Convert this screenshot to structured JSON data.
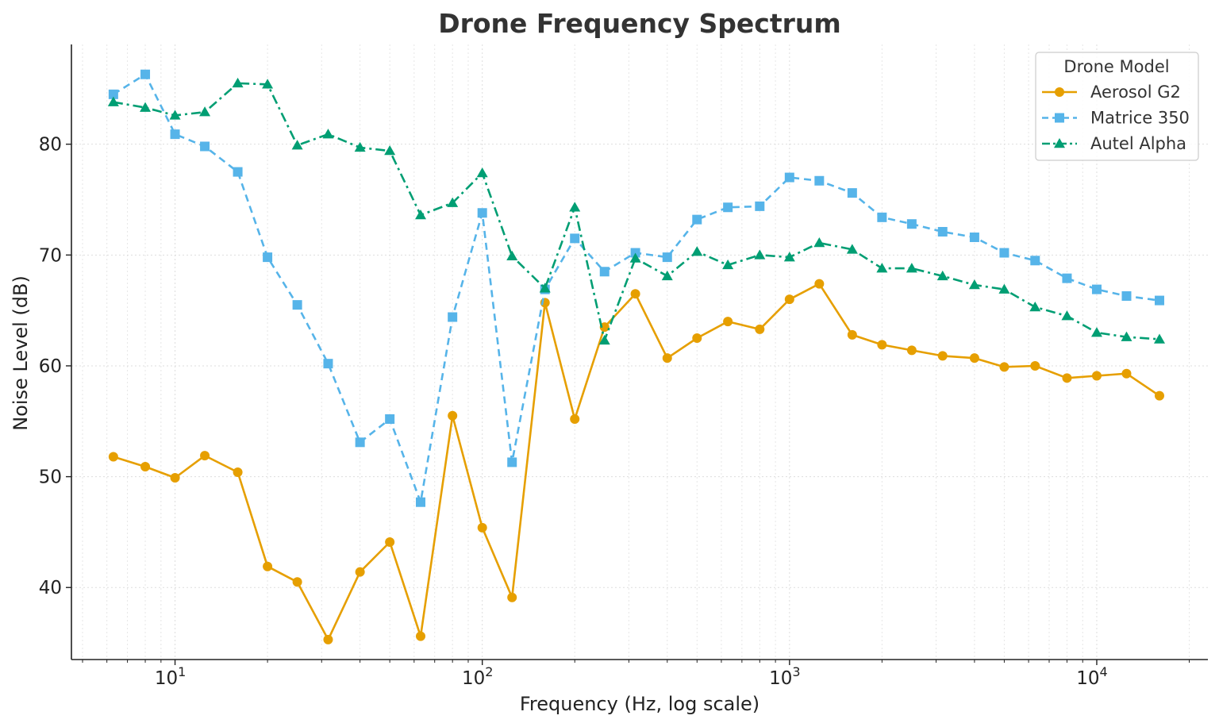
{
  "chart_data": {
    "type": "line",
    "title": "Drone Frequency Spectrum",
    "xlabel": "Frequency (Hz, log scale)",
    "ylabel": "Noise Level (dB)",
    "xscale": "log",
    "xlim": [
      4.6,
      23000
    ],
    "ylim": [
      33.5,
      89
    ],
    "xticks": [
      {
        "value": 10,
        "base": "10",
        "exp": "1"
      },
      {
        "value": 100,
        "base": "10",
        "exp": "2"
      },
      {
        "value": 1000,
        "base": "10",
        "exp": "3"
      },
      {
        "value": 10000,
        "base": "10",
        "exp": "4"
      }
    ],
    "yticks": [
      {
        "value": 40,
        "label": "40"
      },
      {
        "value": 50,
        "label": "50"
      },
      {
        "value": 60,
        "label": "60"
      },
      {
        "value": 70,
        "label": "70"
      },
      {
        "value": 80,
        "label": "80"
      }
    ],
    "grid": true,
    "legend_title": "Drone Model",
    "legend_position": "top-right",
    "x": [
      6.3,
      8,
      10,
      12.5,
      16,
      20,
      25,
      31.5,
      40,
      50,
      63,
      80,
      100,
      125,
      160,
      200,
      250,
      315,
      400,
      500,
      630,
      800,
      1000,
      1250,
      1600,
      2000,
      2500,
      3150,
      4000,
      5000,
      6300,
      8000,
      10000,
      12500,
      16000
    ],
    "series": [
      {
        "name": "Aerosol G2",
        "color": "#E69F00",
        "dash": "solid",
        "marker": "circle",
        "values": [
          51.8,
          50.9,
          49.9,
          51.9,
          50.4,
          41.9,
          40.5,
          35.3,
          41.4,
          44.1,
          35.6,
          55.5,
          45.4,
          39.1,
          65.7,
          55.2,
          63.5,
          66.5,
          60.7,
          62.5,
          64.0,
          63.3,
          66.0,
          67.4,
          62.8,
          61.9,
          61.4,
          60.9,
          60.7,
          59.9,
          60.0,
          58.9,
          59.1,
          59.3,
          57.3
        ]
      },
      {
        "name": "Matrice 350",
        "color": "#56B4E9",
        "dash": "dashed",
        "marker": "square",
        "values": [
          84.5,
          86.3,
          80.9,
          79.8,
          77.5,
          69.8,
          65.5,
          60.2,
          53.1,
          55.2,
          47.7,
          64.4,
          73.8,
          51.3,
          66.9,
          71.5,
          68.5,
          70.2,
          69.8,
          73.2,
          74.3,
          74.4,
          77.0,
          76.7,
          75.6,
          73.4,
          72.8,
          72.1,
          71.6,
          70.2,
          69.5,
          67.9,
          66.9,
          66.3,
          65.9
        ]
      },
      {
        "name": "Autel Alpha",
        "color": "#009E73",
        "dash": "dashdot",
        "marker": "triangle",
        "values": [
          83.8,
          83.3,
          82.6,
          82.9,
          85.5,
          85.4,
          79.9,
          80.9,
          79.7,
          79.4,
          73.6,
          74.7,
          77.4,
          69.9,
          67.0,
          74.3,
          62.3,
          69.7,
          68.1,
          70.3,
          69.1,
          70.0,
          69.8,
          71.1,
          70.5,
          68.8,
          68.8,
          68.1,
          67.3,
          66.9,
          65.3,
          64.5,
          63.0,
          62.6,
          62.4
        ]
      }
    ]
  }
}
